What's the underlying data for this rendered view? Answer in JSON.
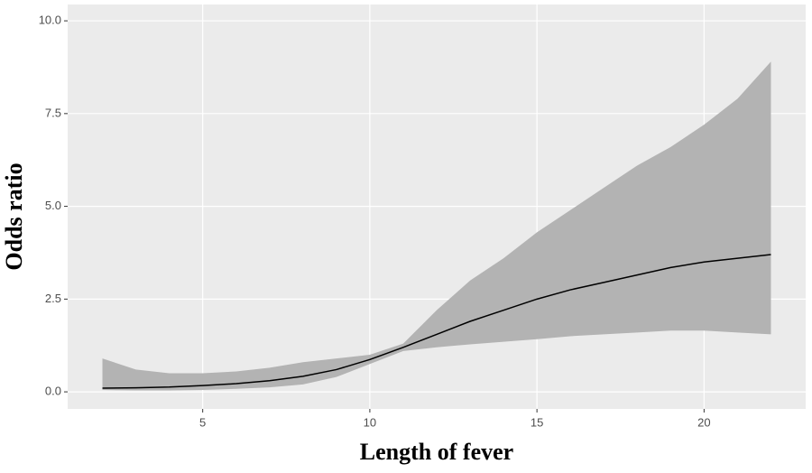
{
  "chart_data": {
    "type": "line",
    "x_label": "Length of fever",
    "y_label": "Odds ratio",
    "x": [
      2,
      3,
      4,
      5,
      6,
      7,
      8,
      9,
      10,
      11,
      12,
      13,
      14,
      15,
      16,
      17,
      18,
      19,
      20,
      21,
      22
    ],
    "series": [
      {
        "color": "#000000",
        "values": [
          0.1,
          0.11,
          0.13,
          0.17,
          0.22,
          0.3,
          0.42,
          0.6,
          0.87,
          1.2,
          1.55,
          1.9,
          2.2,
          2.5,
          2.75,
          2.95,
          3.15,
          3.35,
          3.5,
          3.6,
          3.7
        ]
      }
    ],
    "band": {
      "color": "#b3b3b3",
      "upper": [
        0.9,
        0.6,
        0.5,
        0.5,
        0.55,
        0.65,
        0.8,
        0.9,
        1.0,
        1.3,
        2.2,
        3.0,
        3.6,
        4.3,
        4.9,
        5.5,
        6.1,
        6.6,
        7.2,
        7.9,
        8.9
      ],
      "lower": [
        0.05,
        0.04,
        0.04,
        0.05,
        0.08,
        0.12,
        0.2,
        0.4,
        0.75,
        1.1,
        1.2,
        1.28,
        1.35,
        1.42,
        1.5,
        1.55,
        1.6,
        1.65,
        1.65,
        1.6,
        1.55
      ]
    },
    "xlim": [
      0.96,
      23.04
    ],
    "ylim": [
      -0.46,
      10.44
    ],
    "xticks": [
      5,
      10,
      15,
      20
    ],
    "yticks": [
      {
        "value": 0,
        "label": "0.0"
      },
      2.5,
      {
        "value": 5,
        "label": "5.0"
      },
      7.5,
      {
        "value": 10,
        "label": "10.0"
      }
    ],
    "grid": true,
    "panel_color": "#ebebeb"
  }
}
